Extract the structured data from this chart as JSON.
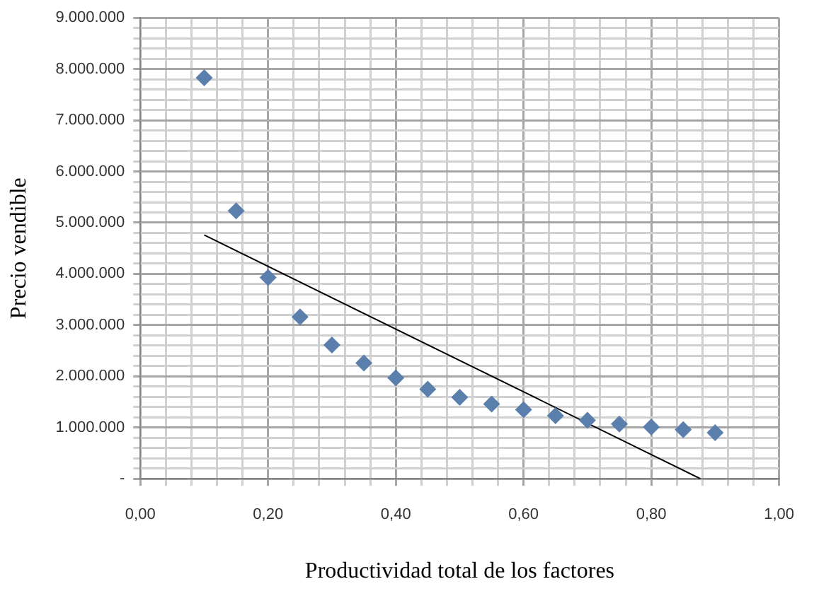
{
  "chart_data": {
    "type": "scatter",
    "xlabel": "Productividad total de los factores",
    "ylabel": "Precio vendible",
    "xlim": [
      0,
      1
    ],
    "ylim": [
      0,
      9000000
    ],
    "xticks": [
      {
        "value": 0,
        "label": "0,00"
      },
      {
        "value": 0.2,
        "label": "0,20"
      },
      {
        "value": 0.4,
        "label": "0,40"
      },
      {
        "value": 0.6,
        "label": "0,60"
      },
      {
        "value": 0.8,
        "label": "0,80"
      },
      {
        "value": 1,
        "label": "1,00"
      }
    ],
    "yticks": [
      {
        "value": 0,
        "label": "-"
      },
      {
        "value": 1000000,
        "label": "1.000.000"
      },
      {
        "value": 2000000,
        "label": "2.000.000"
      },
      {
        "value": 3000000,
        "label": "3.000.000"
      },
      {
        "value": 4000000,
        "label": "4.000.000"
      },
      {
        "value": 5000000,
        "label": "5.000.000"
      },
      {
        "value": 6000000,
        "label": "6.000.000"
      },
      {
        "value": 7000000,
        "label": "7.000.000"
      },
      {
        "value": 8000000,
        "label": "8.000.000"
      },
      {
        "value": 9000000,
        "label": "9.000.000"
      }
    ],
    "grid": true,
    "marker": "diamond",
    "legend": false,
    "series": [
      {
        "type": "scatter",
        "color": "#5b7fad",
        "x": [
          0.1,
          0.15,
          0.2,
          0.25,
          0.3,
          0.35,
          0.4,
          0.45,
          0.5,
          0.55,
          0.6,
          0.65,
          0.7,
          0.75,
          0.8,
          0.85,
          0.9
        ],
        "values": [
          7830000,
          5230000,
          3930000,
          3160000,
          2610000,
          2260000,
          1970000,
          1750000,
          1590000,
          1460000,
          1350000,
          1230000,
          1140000,
          1070000,
          1010000,
          960000,
          900000
        ]
      },
      {
        "type": "line",
        "color": "#000000",
        "marker": "none",
        "x": [
          0.1,
          0.877
        ],
        "values": [
          4760000,
          0
        ]
      }
    ]
  }
}
